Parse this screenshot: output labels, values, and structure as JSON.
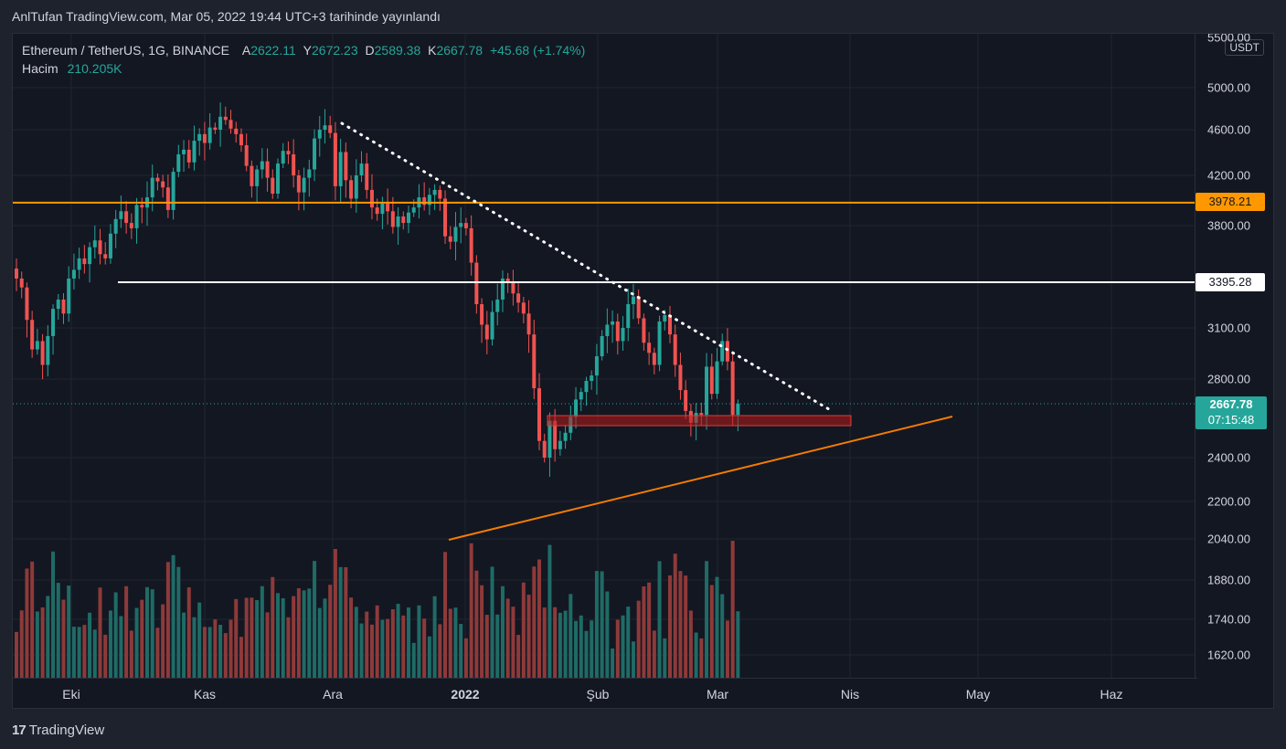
{
  "caption": "AnlTufan TradingView.com, Mar 05, 2022 19:44 UTC+3 tarihinde yayınlandı",
  "legend": {
    "symbol": "Ethereum / TetherUS, 1G, BINANCE",
    "open_label": "A",
    "open": "2622.11",
    "high_label": "Y",
    "high": "2672.23",
    "low_label": "D",
    "low": "2589.38",
    "close_label": "K",
    "close": "2667.78",
    "change": "+45.68 (+1.74%)",
    "volume_label": "Hacim",
    "volume": "210.205K"
  },
  "currency": "USDT",
  "price_ticks": [
    "5500.00",
    "5000.00",
    "4600.00",
    "4200.00",
    "3800.00",
    "3100.00",
    "2800.00",
    "2400.00",
    "2200.00",
    "2040.00",
    "1880.00",
    "1740.00",
    "1620.00"
  ],
  "tags": {
    "resistance": "3978.21",
    "support": "3395.28",
    "last": "2667.78",
    "countdown": "07:15:48"
  },
  "time_ticks": [
    "Eki",
    "Kas",
    "Ara",
    "2022",
    "Şub",
    "Mar",
    "Nis",
    "May",
    "Haz"
  ],
  "brand": "TradingView",
  "colors": {
    "up": "#26a69a",
    "down": "#ef5350",
    "resistance_line": "#ff9800",
    "support_line": "#ffffff",
    "trend_line": "#f57c00",
    "zone": "#b71c1c"
  },
  "chart_data": {
    "type": "candlestick",
    "price_levels": {
      "resistance": 3978.21,
      "support": 3395.28,
      "last": 2667.78
    },
    "closes": [
      3420,
      3360,
      3150,
      2970,
      3020,
      2880,
      3050,
      3220,
      3280,
      3190,
      3420,
      3480,
      3560,
      3520,
      3640,
      3690,
      3590,
      3560,
      3740,
      3850,
      3910,
      3820,
      3780,
      3960,
      3940,
      4020,
      4180,
      4150,
      4100,
      3920,
      4230,
      4380,
      4420,
      4310,
      4500,
      4560,
      4480,
      4620,
      4600,
      4720,
      4690,
      4610,
      4560,
      4460,
      4280,
      4110,
      4250,
      4320,
      4180,
      4050,
      4300,
      4410,
      4380,
      4200,
      4060,
      4180,
      4250,
      4520,
      4600,
      4640,
      4570,
      4110,
      4400,
      4160,
      4010,
      4200,
      4300,
      4080,
      3940,
      3890,
      3970,
      3910,
      3790,
      3870,
      3820,
      3900,
      3940,
      4020,
      3960,
      4040,
      4080,
      4010,
      3720,
      3680,
      3790,
      3820,
      3780,
      3530,
      3250,
      3120,
      3030,
      3200,
      3280,
      3420,
      3390,
      3320,
      3260,
      3190,
      3060,
      2750,
      2480,
      2400,
      2580,
      2440,
      2480,
      2520,
      2600,
      2690,
      2730,
      2790,
      2820,
      2930,
      3050,
      3120,
      3140,
      3020,
      3100,
      3250,
      3300,
      3160,
      3010,
      2950,
      2880,
      3140,
      3180,
      3060,
      2880,
      2740,
      2630,
      2570,
      2620,
      2610,
      2870,
      2720,
      2900,
      3020,
      2900,
      2610,
      2667.78
    ],
    "volume_note": "Hacim 210.205K"
  }
}
